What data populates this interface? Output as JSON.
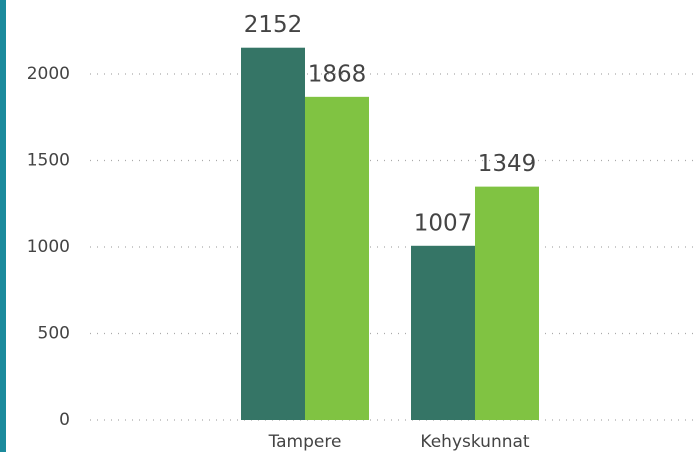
{
  "chart_data": {
    "type": "bar",
    "categories": [
      "Tampere",
      "Kehyskunnat"
    ],
    "series": [
      {
        "color": "#357566",
        "values": [
          2152,
          1007
        ]
      },
      {
        "color": "#80c342",
        "values": [
          1868,
          1349
        ]
      }
    ],
    "ylim": [
      0,
      2200
    ],
    "yticks": [
      0,
      500,
      1000,
      1500,
      2000
    ],
    "grid": true
  }
}
